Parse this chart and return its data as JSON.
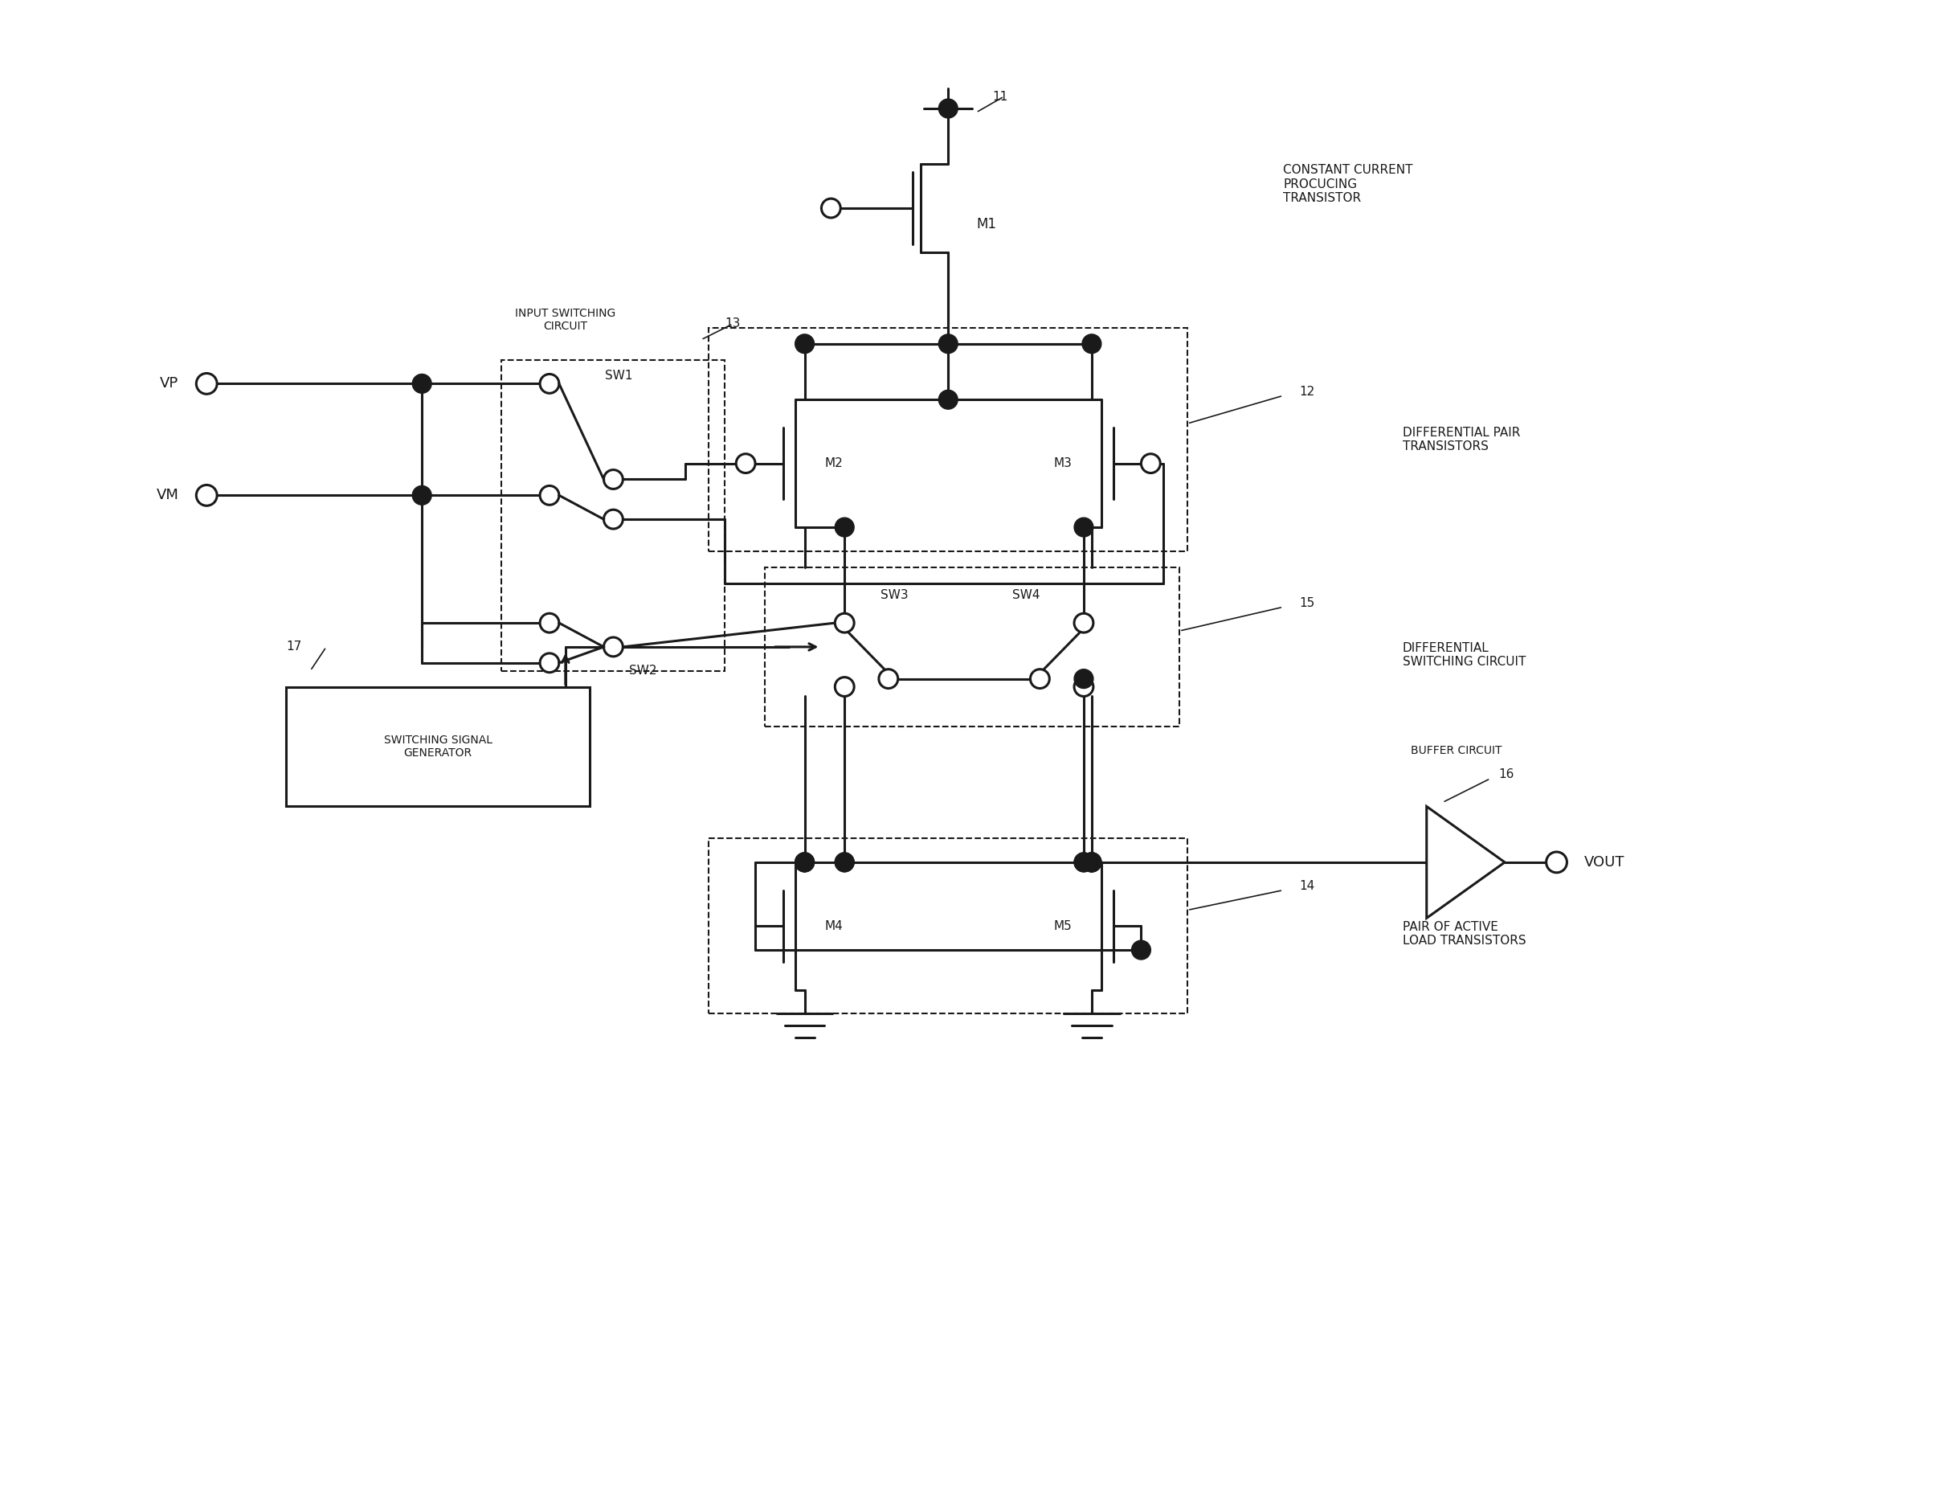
{
  "bg_color": "#ffffff",
  "line_color": "#1a1a1a",
  "line_width": 2.2,
  "fig_width": 24.26,
  "fig_height": 18.54,
  "labels": {
    "VP": "VP",
    "VM": "VM",
    "VOUT": "VOUT",
    "M1": "M1",
    "M2": "M2",
    "M3": "M3",
    "M4": "M4",
    "M5": "M5",
    "SW1": "SW1",
    "SW2": "SW2",
    "SW3": "SW3",
    "SW4": "SW4",
    "num11": "11",
    "num12": "12",
    "num13": "13",
    "num14": "14",
    "num15": "15",
    "num16": "16",
    "num17": "17",
    "box13": "INPUT SWITCHING\nCIRCUIT",
    "box12": "DIFFERENTIAL PAIR\nTRANSISTORS",
    "box15": "DIFFERENTIAL\nSWITCHING CIRCUIT",
    "box14": "PAIR OF ACTIVE\nLOAD TRANSISTORS",
    "box17": "SWITCHING SIGNAL\nGENERATOR",
    "box16": "BUFFER CIRCUIT",
    "cc": "CONSTANT CURRENT\nPROCUCING\nTRANSISTOR"
  }
}
